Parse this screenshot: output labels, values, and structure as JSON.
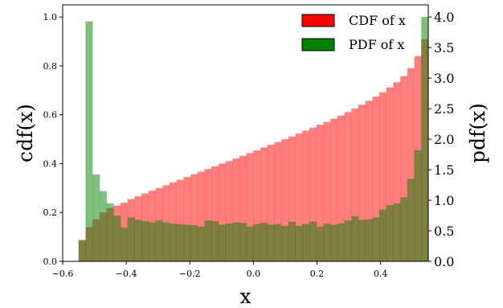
{
  "chart_data": {
    "type": "bar",
    "x_axis": {
      "label": "x",
      "range": [
        -0.6,
        0.55
      ],
      "ticks": [
        -0.6,
        -0.4,
        -0.2,
        0.0,
        0.2,
        0.4
      ],
      "tick_labels": [
        "−0.6",
        "−0.4",
        "−0.2",
        "0.0",
        "0.2",
        "0.4"
      ]
    },
    "y_left": {
      "label": "cdf(x)",
      "range": [
        0,
        1.05
      ],
      "ticks": [
        0,
        0.2,
        0.4,
        0.6,
        0.8,
        1.0
      ],
      "tick_labels": [
        "0.0",
        "0.2",
        "0.4",
        "0.6",
        "0.8",
        "1.0"
      ]
    },
    "y_right": {
      "label": "pdf(x)",
      "range": [
        0,
        4.2
      ],
      "ticks": [
        0,
        0.5,
        1.0,
        1.5,
        2.0,
        2.5,
        3.0,
        3.5,
        4.0
      ],
      "tick_labels": [
        "0.0",
        "0.5",
        "1.0",
        "1.5",
        "2.0",
        "2.5",
        "3.0",
        "3.5",
        "4.0"
      ]
    },
    "legend": {
      "placement": "top-right",
      "entries": [
        {
          "label": "CDF of x",
          "color": "#ff0000"
        },
        {
          "label": "PDF of x",
          "color": "#008000"
        }
      ]
    },
    "grid": false,
    "bin_range": [
      -0.55,
      0.55
    ],
    "bin_count": 50,
    "series": [
      {
        "name": "CDF of x",
        "axis": "left",
        "color": "#ff0000",
        "opacity": 0.5,
        "values": [
          0.087,
          0.14,
          0.172,
          0.2,
          0.218,
          0.228,
          0.24,
          0.255,
          0.266,
          0.278,
          0.289,
          0.3,
          0.311,
          0.323,
          0.334,
          0.345,
          0.356,
          0.367,
          0.378,
          0.389,
          0.4,
          0.41,
          0.421,
          0.432,
          0.443,
          0.454,
          0.466,
          0.477,
          0.488,
          0.5,
          0.511,
          0.523,
          0.535,
          0.547,
          0.559,
          0.571,
          0.584,
          0.597,
          0.611,
          0.625,
          0.641,
          0.657,
          0.674,
          0.692,
          0.712,
          0.733,
          0.758,
          0.79,
          0.84,
          0.91
        ]
      },
      {
        "name": "PDF of x",
        "axis": "right",
        "color": "#008000",
        "opacity": 0.5,
        "values": [
          0.35,
          3.93,
          1.42,
          1.15,
          0.95,
          0.75,
          0.55,
          0.72,
          0.68,
          0.66,
          0.64,
          0.67,
          0.64,
          0.62,
          0.61,
          0.6,
          0.59,
          0.57,
          0.67,
          0.66,
          0.6,
          0.62,
          0.64,
          0.63,
          0.57,
          0.61,
          0.63,
          0.6,
          0.61,
          0.58,
          0.65,
          0.58,
          0.61,
          0.65,
          0.57,
          0.62,
          0.6,
          0.62,
          0.67,
          0.74,
          0.68,
          0.69,
          0.72,
          0.85,
          0.92,
          0.95,
          1.05,
          1.35,
          1.82,
          4.0
        ]
      }
    ]
  }
}
